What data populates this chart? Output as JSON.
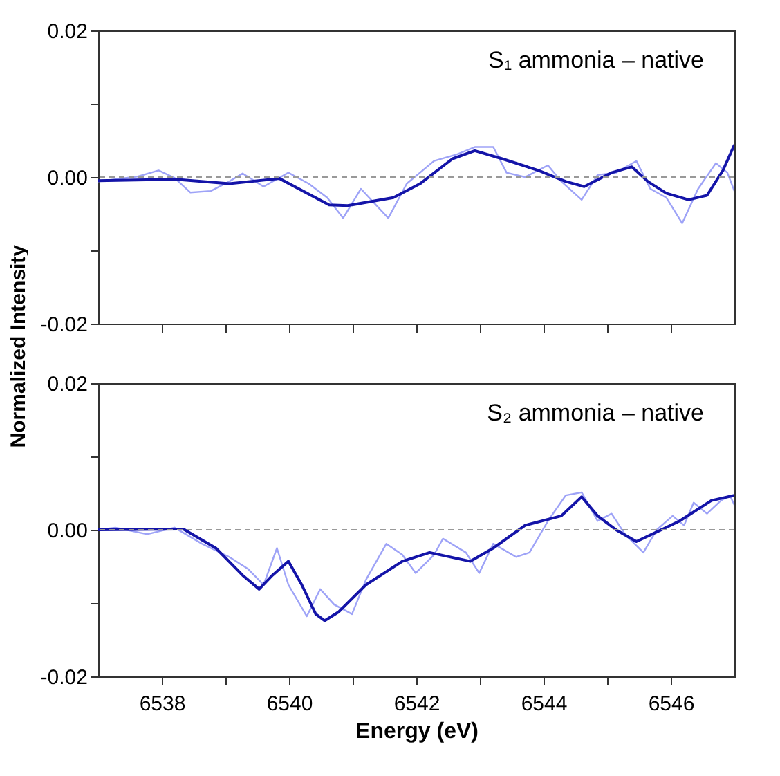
{
  "chart_data": [
    {
      "type": "line",
      "ylabel": "Normalized Intensity",
      "annotations": [
        "S₁  ammonia – native"
      ],
      "tick_labels": "y",
      "grid": false,
      "legend": false,
      "xlim": [
        6537,
        6547
      ],
      "ylim": [
        -0.02,
        0.02
      ],
      "xticks": [
        {
          "value": 6538,
          "label": null
        },
        {
          "value": 6539,
          "label": null
        },
        {
          "value": 6540,
          "label": null
        },
        {
          "value": 6541,
          "label": null
        },
        {
          "value": 6542,
          "label": null
        },
        {
          "value": 6543,
          "label": null
        },
        {
          "value": 6544,
          "label": null
        },
        {
          "value": 6545,
          "label": null
        },
        {
          "value": 6546,
          "label": null
        }
      ],
      "yticks": [
        {
          "value": -0.02,
          "label": "-0.02"
        },
        {
          "value": -0.01,
          "label": null
        },
        {
          "value": 0,
          "label": "0.00"
        },
        {
          "value": 0.01,
          "label": null
        },
        {
          "value": 0.02,
          "label": "0.02"
        }
      ],
      "ref_lines": [
        {
          "axis": "y",
          "value": 0,
          "color": "#999999",
          "line_style": "dashed"
        }
      ],
      "series": [
        {
          "color": "#9ea3f7",
          "x": [
            6537,
            6537.63,
            6537.95,
            6538.2,
            6538.45,
            6538.77,
            6539.06,
            6539.27,
            6539.6,
            6539.99,
            6540.31,
            6540.6,
            6540.85,
            6541.13,
            6541.56,
            6541.85,
            6542.28,
            6542.64,
            6542.92,
            6543.21,
            6543.42,
            6543.71,
            6544.07,
            6544.28,
            6544.6,
            6544.85,
            6545.14,
            6545.46,
            6545.68,
            6545.93,
            6546.18,
            6546.43,
            6546.71,
            6546.89,
            6547
          ],
          "values": [
            -0.0006,
            0.0001,
            0.0009,
            -0.0001,
            -0.0021,
            -0.0019,
            -0.0006,
            0.0005,
            -0.0013,
            0.0006,
            -0.0009,
            -0.0028,
            -0.0056,
            -0.0016,
            -0.0056,
            -0.0009,
            0.0022,
            0.0031,
            0.0041,
            0.0041,
            0.0006,
            0,
            0.0016,
            -0.0006,
            -0.0031,
            0.0003,
            0.0006,
            0.0022,
            -0.0016,
            -0.0028,
            -0.0063,
            -0.0016,
            0.0019,
            0.0006,
            -0.0019
          ]
        },
        {
          "color": "#1414a8",
          "x": [
            6537,
            6538.2,
            6539.06,
            6539.85,
            6540.63,
            6540.92,
            6541.64,
            6542.06,
            6542.57,
            6542.92,
            6543.35,
            6543.92,
            6544.35,
            6544.64,
            6545.07,
            6545.39,
            6545.64,
            6545.93,
            6546.28,
            6546.57,
            6546.82,
            6547
          ],
          "values": [
            -0.0005,
            -0.0003,
            -0.0009,
            -0.0002,
            -0.0038,
            -0.0039,
            -0.0028,
            -0.0009,
            0.0025,
            0.0036,
            0.0025,
            0.0009,
            -0.0006,
            -0.0013,
            0.0006,
            0.0014,
            -0.0006,
            -0.0022,
            -0.0031,
            -0.0025,
            0.0009,
            0.0044
          ]
        }
      ]
    },
    {
      "type": "line",
      "xlabel": "Energy (eV)",
      "annotations": [
        "S₂  ammonia – native"
      ],
      "grid": false,
      "legend": false,
      "xlim": [
        6537,
        6547
      ],
      "ylim": [
        -0.02,
        0.02
      ],
      "xticks": [
        6538,
        {
          "value": 6539,
          "label": null
        },
        6540,
        {
          "value": 6541,
          "label": null
        },
        6542,
        {
          "value": 6543,
          "label": null
        },
        6544,
        {
          "value": 6545,
          "label": null
        },
        6546
      ],
      "yticks": [
        {
          "value": -0.02,
          "label": "-0.02"
        },
        {
          "value": -0.01,
          "label": null
        },
        {
          "value": 0,
          "label": "0.00"
        },
        {
          "value": 0.01,
          "label": null
        },
        {
          "value": 0.02,
          "label": "0.02"
        }
      ],
      "ref_lines": [
        {
          "axis": "y",
          "value": 0,
          "color": "#999999",
          "line_style": "dashed"
        }
      ],
      "series": [
        {
          "color": "#9ea3f7",
          "x": [
            6537,
            6537.27,
            6537.77,
            6538.2,
            6538.63,
            6539.06,
            6539.35,
            6539.6,
            6539.81,
            6539.99,
            6540.28,
            6540.49,
            6540.71,
            6540.99,
            6541.21,
            6541.53,
            6541.78,
            6541.99,
            6542.28,
            6542.42,
            6542.78,
            6542.99,
            6543.21,
            6543.57,
            6543.78,
            6544.07,
            6544.35,
            6544.6,
            6544.85,
            6545.07,
            6545.28,
            6545.57,
            6545.78,
            6546.03,
            6546.21,
            6546.36,
            6546.57,
            6546.79,
            6546.93,
            6547
          ],
          "values": [
            0,
            0.0003,
            -0.0006,
            0.0003,
            -0.0019,
            -0.0037,
            -0.0053,
            -0.0075,
            -0.0025,
            -0.0075,
            -0.0118,
            -0.0081,
            -0.0102,
            -0.0115,
            -0.0068,
            -0.0019,
            -0.0034,
            -0.0059,
            -0.0034,
            -0.0012,
            -0.0031,
            -0.0059,
            -0.0019,
            -0.0037,
            -0.0031,
            0.0012,
            0.0047,
            0.0051,
            0.0012,
            0.0022,
            -0.0006,
            -0.0031,
            0,
            0.0019,
            0.0006,
            0.0037,
            0.0022,
            0.004,
            0.0047,
            0.0034
          ]
        },
        {
          "color": "#1414a8",
          "x": [
            6537,
            6538.34,
            6538.85,
            6539.27,
            6539.53,
            6539.74,
            6539.99,
            6540.2,
            6540.42,
            6540.56,
            6540.78,
            6541.21,
            6541.78,
            6542.21,
            6542.85,
            6543.21,
            6543.71,
            6544.28,
            6544.6,
            6544.85,
            6545.14,
            6545.46,
            6545.78,
            6546.14,
            6546.64,
            6547
          ],
          "values": [
            0,
            0.0001,
            -0.0025,
            -0.0062,
            -0.0081,
            -0.0062,
            -0.0043,
            -0.0075,
            -0.0115,
            -0.0124,
            -0.0112,
            -0.0075,
            -0.0043,
            -0.0031,
            -0.0043,
            -0.0025,
            0.0006,
            0.0019,
            0.0045,
            0.0019,
            0,
            -0.0016,
            -0.0003,
            0.0012,
            0.004,
            0.0047
          ]
        }
      ]
    }
  ]
}
